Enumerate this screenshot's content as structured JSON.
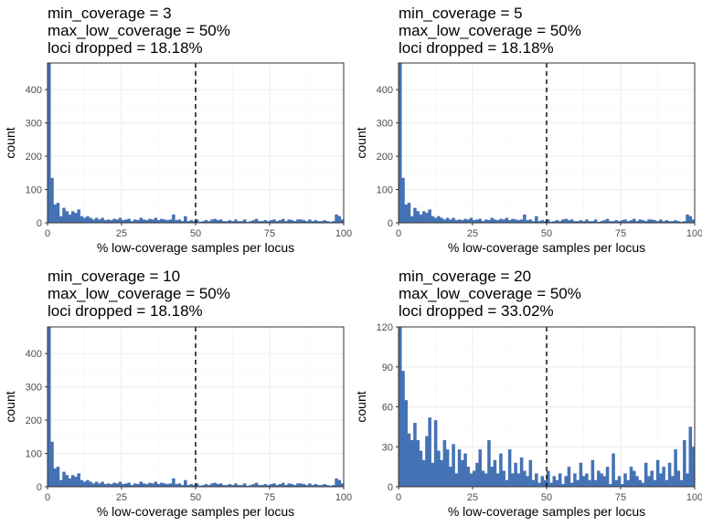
{
  "colors": {
    "bar": "#4472b4",
    "threshold_line": "#000000"
  },
  "chart_data": [
    {
      "type": "bar",
      "title_lines": [
        "min_coverage = 3",
        "max_low_coverage = 50%",
        "loci dropped = 18.18%"
      ],
      "xlabel": "% low-coverage samples per locus",
      "ylabel": "count",
      "xlim": [
        0,
        100
      ],
      "ylim": [
        0,
        480
      ],
      "x_ticks": [
        0,
        25,
        50,
        75,
        100
      ],
      "y_ticks": [
        0,
        100,
        200,
        300,
        400
      ],
      "threshold": 50,
      "bin_width": 1,
      "grid": true,
      "values": [
        480,
        135,
        55,
        60,
        20,
        45,
        35,
        25,
        35,
        30,
        40,
        20,
        15,
        20,
        15,
        10,
        15,
        10,
        15,
        8,
        10,
        8,
        12,
        10,
        15,
        8,
        10,
        12,
        5,
        10,
        8,
        15,
        10,
        8,
        12,
        10,
        15,
        8,
        12,
        10,
        8,
        10,
        25,
        8,
        10,
        5,
        20,
        5,
        8,
        5,
        10,
        3,
        5,
        8,
        5,
        10,
        12,
        8,
        10,
        5,
        5,
        8,
        5,
        10,
        5,
        5,
        10,
        3,
        5,
        8,
        12,
        5,
        5,
        8,
        5,
        8,
        10,
        5,
        8,
        12,
        5,
        10,
        8,
        5,
        10,
        10,
        8,
        5,
        10,
        5,
        8,
        5,
        5,
        8,
        5,
        3,
        5,
        25,
        20,
        10
      ]
    },
    {
      "type": "bar",
      "title_lines": [
        "min_coverage = 5",
        "max_low_coverage = 50%",
        "loci dropped = 18.18%"
      ],
      "xlabel": "% low-coverage samples per locus",
      "ylabel": "count",
      "xlim": [
        0,
        100
      ],
      "ylim": [
        0,
        480
      ],
      "x_ticks": [
        0,
        25,
        50,
        75,
        100
      ],
      "y_ticks": [
        0,
        100,
        200,
        300,
        400
      ],
      "threshold": 50,
      "bin_width": 1,
      "grid": true,
      "values": [
        480,
        135,
        55,
        60,
        20,
        45,
        35,
        25,
        35,
        30,
        40,
        20,
        15,
        20,
        15,
        10,
        15,
        10,
        15,
        8,
        10,
        8,
        12,
        10,
        15,
        8,
        10,
        12,
        5,
        10,
        8,
        15,
        10,
        8,
        12,
        10,
        15,
        8,
        12,
        10,
        8,
        10,
        25,
        8,
        10,
        5,
        20,
        5,
        8,
        5,
        10,
        3,
        5,
        8,
        5,
        10,
        12,
        8,
        10,
        5,
        5,
        8,
        5,
        10,
        5,
        5,
        10,
        3,
        5,
        8,
        12,
        5,
        5,
        8,
        5,
        8,
        10,
        5,
        8,
        12,
        5,
        10,
        8,
        5,
        10,
        10,
        8,
        5,
        10,
        5,
        8,
        5,
        5,
        8,
        5,
        3,
        5,
        25,
        20,
        10
      ]
    },
    {
      "type": "bar",
      "title_lines": [
        "min_coverage = 10",
        "max_low_coverage = 50%",
        "loci dropped = 18.18%"
      ],
      "xlabel": "% low-coverage samples per locus",
      "ylabel": "count",
      "xlim": [
        0,
        100
      ],
      "ylim": [
        0,
        480
      ],
      "x_ticks": [
        0,
        25,
        50,
        75,
        100
      ],
      "y_ticks": [
        0,
        100,
        200,
        300,
        400
      ],
      "threshold": 50,
      "bin_width": 1,
      "grid": true,
      "values": [
        480,
        135,
        55,
        60,
        20,
        45,
        35,
        25,
        35,
        30,
        40,
        20,
        15,
        20,
        15,
        10,
        15,
        10,
        15,
        8,
        10,
        8,
        12,
        10,
        15,
        8,
        10,
        12,
        5,
        10,
        8,
        15,
        10,
        8,
        12,
        10,
        15,
        8,
        12,
        10,
        8,
        10,
        25,
        8,
        10,
        5,
        20,
        5,
        8,
        5,
        10,
        3,
        5,
        8,
        5,
        10,
        12,
        8,
        10,
        5,
        5,
        8,
        5,
        10,
        5,
        5,
        10,
        3,
        5,
        8,
        12,
        5,
        5,
        8,
        5,
        8,
        10,
        5,
        8,
        12,
        5,
        10,
        8,
        5,
        10,
        10,
        8,
        5,
        10,
        5,
        8,
        5,
        5,
        8,
        5,
        3,
        5,
        25,
        20,
        10
      ]
    },
    {
      "type": "bar",
      "title_lines": [
        "min_coverage = 20",
        "max_low_coverage = 50%",
        "loci dropped = 33.02%"
      ],
      "xlabel": "% low-coverage samples per locus",
      "ylabel": "count",
      "xlim": [
        0,
        100
      ],
      "ylim": [
        0,
        120
      ],
      "x_ticks": [
        0,
        25,
        50,
        75,
        100
      ],
      "y_ticks": [
        0,
        30,
        60,
        90,
        120
      ],
      "threshold": 50,
      "bin_width": 1,
      "grid": true,
      "values": [
        120,
        87,
        65,
        40,
        35,
        48,
        35,
        27,
        20,
        38,
        52,
        18,
        50,
        27,
        20,
        35,
        28,
        15,
        32,
        10,
        28,
        20,
        25,
        15,
        10,
        12,
        18,
        28,
        12,
        10,
        35,
        15,
        20,
        10,
        25,
        12,
        5,
        28,
        10,
        18,
        10,
        22,
        12,
        8,
        20,
        5,
        10,
        3,
        8,
        5,
        12,
        3,
        8,
        5,
        10,
        2,
        8,
        15,
        3,
        10,
        5,
        18,
        8,
        10,
        5,
        20,
        5,
        12,
        10,
        8,
        15,
        2,
        25,
        5,
        8,
        2,
        10,
        5,
        15,
        12,
        8,
        5,
        3,
        18,
        8,
        12,
        5,
        20,
        10,
        15,
        5,
        18,
        8,
        28,
        12,
        5,
        35,
        10,
        45,
        30
      ]
    }
  ]
}
